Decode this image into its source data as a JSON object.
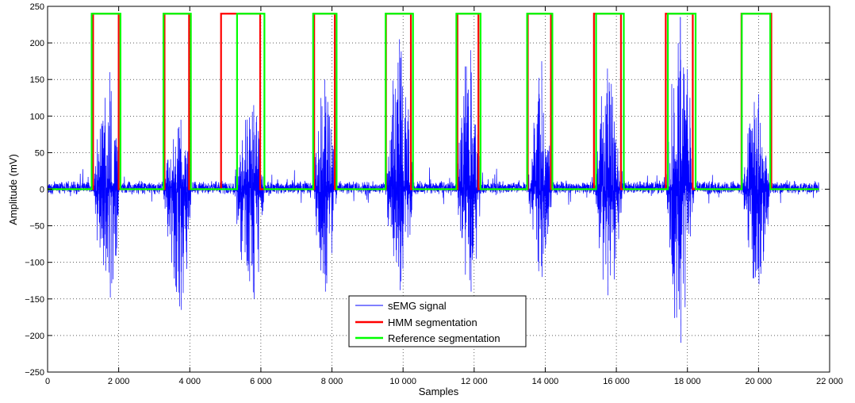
{
  "chart_data": {
    "type": "line",
    "title": "",
    "xlabel": "Samples",
    "ylabel": "Amplitude (mV)",
    "xlim": [
      0,
      22000
    ],
    "ylim": [
      -250,
      250
    ],
    "x_ticks": [
      0,
      2000,
      4000,
      6000,
      8000,
      10000,
      12000,
      14000,
      16000,
      18000,
      20000,
      22000
    ],
    "x_tick_labels": [
      "0",
      "2 000",
      "4 000",
      "6 000",
      "8 000",
      "10 000",
      "12 000",
      "14 000",
      "16 000",
      "18 000",
      "20 000",
      "22 000"
    ],
    "y_ticks": [
      -250,
      -200,
      -150,
      -100,
      -50,
      0,
      50,
      100,
      150,
      200,
      250
    ],
    "y_tick_labels": [
      "−250",
      "−200",
      "−150",
      "−100",
      "−50",
      "0",
      "50",
      "100",
      "150",
      "200",
      "250"
    ],
    "grid": true,
    "legend_position": "bottom-center",
    "series": [
      {
        "name": "sEMG signal",
        "color": "#0000ff",
        "x_range": [
          0,
          21700
        ],
        "baseline_noise_amplitude": 8,
        "bursts": [
          {
            "start": 1250,
            "end": 2050,
            "peak_x": 1750,
            "max": 160,
            "min": -148
          },
          {
            "start": 3250,
            "end": 4050,
            "peak_x": 3750,
            "max": 95,
            "min": -165
          },
          {
            "start": 5200,
            "end": 6100,
            "peak_x": 5800,
            "max": 115,
            "min": -150
          },
          {
            "start": 7450,
            "end": 8150,
            "peak_x": 7800,
            "max": 150,
            "min": -140
          },
          {
            "start": 9500,
            "end": 10300,
            "peak_x": 9900,
            "max": 205,
            "min": -138
          },
          {
            "start": 11500,
            "end": 12200,
            "peak_x": 11900,
            "max": 190,
            "min": -140
          },
          {
            "start": 13500,
            "end": 14200,
            "peak_x": 13900,
            "max": 175,
            "min": -120
          },
          {
            "start": 15400,
            "end": 16200,
            "peak_x": 15750,
            "max": 165,
            "min": -145
          },
          {
            "start": 17400,
            "end": 18200,
            "peak_x": 17800,
            "max": 235,
            "min": -210
          },
          {
            "start": 19500,
            "end": 20350,
            "peak_x": 20000,
            "max": 130,
            "min": -130
          }
        ]
      },
      {
        "name": "HMM segmentation",
        "color": "#ff0000",
        "low": 0,
        "high": 240,
        "x_end": 21700,
        "segments": [
          [
            1280,
            2000
          ],
          [
            3290,
            3980
          ],
          [
            4880,
            5980
          ],
          [
            7500,
            8080
          ],
          [
            9520,
            10220
          ],
          [
            11530,
            12120
          ],
          [
            13510,
            14160
          ],
          [
            15370,
            16130
          ],
          [
            17390,
            18150
          ],
          [
            19520,
            20360
          ]
        ]
      },
      {
        "name": "Reference segmentation",
        "color": "#00ff00",
        "low": 0,
        "high": 240,
        "x_end": 21700,
        "segments": [
          [
            1240,
            2050
          ],
          [
            3260,
            4030
          ],
          [
            5330,
            6100
          ],
          [
            7470,
            8130
          ],
          [
            9510,
            10280
          ],
          [
            11500,
            12180
          ],
          [
            13490,
            14200
          ],
          [
            15430,
            16210
          ],
          [
            17450,
            18230
          ],
          [
            19530,
            20330
          ]
        ]
      }
    ]
  }
}
